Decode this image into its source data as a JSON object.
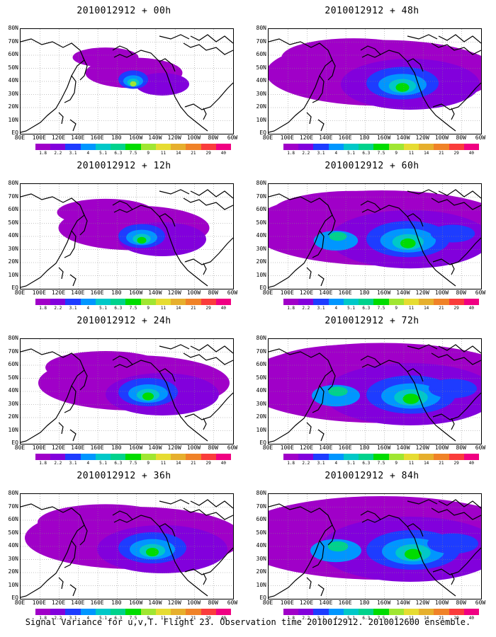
{
  "panels": [
    {
      "title": "2010012912 + 00h",
      "spread": 0.15,
      "intensity": 0.9
    },
    {
      "title": "2010012912 + 12h",
      "spread": 0.35,
      "intensity": 0.55
    },
    {
      "title": "2010012912 + 24h",
      "spread": 0.5,
      "intensity": 0.45
    },
    {
      "title": "2010012912 + 36h",
      "spread": 0.6,
      "intensity": 0.45
    },
    {
      "title": "2010012912 + 48h",
      "spread": 0.65,
      "intensity": 0.5
    },
    {
      "title": "2010012912 + 60h",
      "spread": 0.78,
      "intensity": 0.5
    },
    {
      "title": "2010012912 + 72h",
      "spread": 0.85,
      "intensity": 0.55
    },
    {
      "title": "2010012912 + 84h",
      "spread": 0.9,
      "intensity": 0.6
    }
  ],
  "lat_labels": [
    "80N",
    "70N",
    "60N",
    "50N",
    "40N",
    "30N",
    "20N",
    "10N",
    "EQ"
  ],
  "lon_labels": [
    "80E",
    "100E",
    "120E",
    "140E",
    "160E",
    "180",
    "160W",
    "140W",
    "120W",
    "100W",
    "80W",
    "60W"
  ],
  "colorbar": {
    "labels": [
      "1.8",
      "2.2",
      "3.1",
      "4",
      "5.1",
      "6.3",
      "7.5",
      "9",
      "11",
      "14",
      "21",
      "29",
      "40"
    ],
    "colors": [
      "#a000c8",
      "#8200dc",
      "#1e3cff",
      "#0096ff",
      "#00c8c8",
      "#00d28c",
      "#00dc00",
      "#a0e632",
      "#e6dc32",
      "#e6af2d",
      "#f08228",
      "#fa3c3c",
      "#f00082"
    ]
  },
  "footer": "Signal Variance for u,v,T. Flight 23. Observation time 2010012912. 2010012600 ensemble."
}
